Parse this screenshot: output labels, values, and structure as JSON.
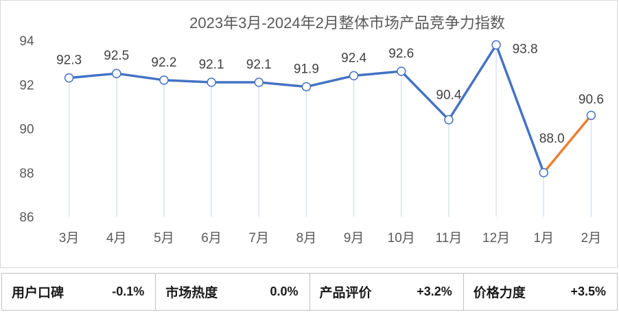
{
  "chart_data": {
    "type": "line",
    "title": "2023年3月-2024年2月整体市场产品竞争力指数",
    "categories": [
      "3月",
      "4月",
      "5月",
      "6月",
      "7月",
      "8月",
      "9月",
      "10月",
      "11月",
      "12月",
      "1月",
      "2月"
    ],
    "series": [
      {
        "values": [
          92.3,
          92.5,
          92.2,
          92.1,
          92.1,
          91.9,
          92.4,
          92.6,
          90.4,
          93.8,
          88.0,
          90.6
        ]
      }
    ],
    "data_labels": [
      "92.3",
      "92.5",
      "92.2",
      "92.1",
      "92.1",
      "91.9",
      "92.4",
      "92.6",
      "90.4",
      "93.8",
      "88.0",
      "90.6"
    ],
    "yticks": [
      "86",
      "88",
      "90",
      "92",
      "94"
    ],
    "ylim": [
      86,
      94
    ],
    "xlabel": "",
    "ylabel": "",
    "grid": false,
    "colors": {
      "line": "#4472c4",
      "last_segment": "#ed7d31",
      "marker_fill": "#ffffff",
      "drop_line": "#d9e1f2"
    }
  },
  "metrics": [
    {
      "label": "用户口碑",
      "value": "-0.1%"
    },
    {
      "label": "市场热度",
      "value": "0.0%"
    },
    {
      "label": "产品评价",
      "value": "+3.2%"
    },
    {
      "label": "价格力度",
      "value": "+3.5%"
    }
  ]
}
